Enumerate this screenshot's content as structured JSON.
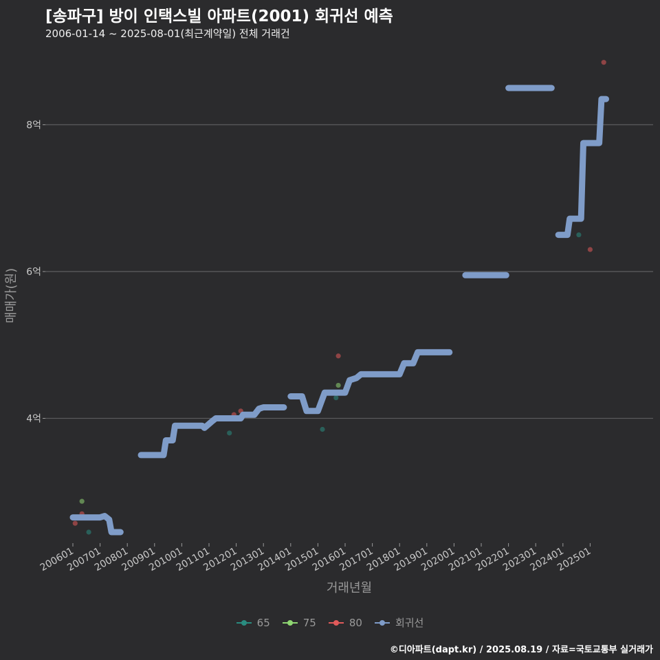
{
  "chart_data": {
    "type": "line",
    "title": "[송파구] 방이 인택스빌 아파트(2001) 회귀선 예측",
    "subtitle": "2006-01-14 ~ 2025-08-01(최근계약일) 전체 거래건",
    "xlabel": "거래년월",
    "ylabel": "매매가(원)",
    "caption": "©디아파트(dapt.kr) / 2025.08.19 / 자료=국토교통부 실거래가",
    "x_range": [
      "2006-01",
      "2025-12"
    ],
    "ylim": [
      2.3,
      8.95
    ],
    "y_ticks": [
      4,
      6,
      8
    ],
    "y_tick_labels": [
      "4억",
      "6억",
      "8억"
    ],
    "x_tick_labels": [
      "200601",
      "200701",
      "200801",
      "200901",
      "201001",
      "201101",
      "201201",
      "201301",
      "201401",
      "201501",
      "201601",
      "201701",
      "201801",
      "201901",
      "202001",
      "202101",
      "202201",
      "202301",
      "202401",
      "202501"
    ],
    "grid": "horizontal major lines",
    "legend_position": "bottom",
    "legend": [
      {
        "name": "65",
        "color": "#2a8c80"
      },
      {
        "name": "75",
        "color": "#8fd672"
      },
      {
        "name": "80",
        "color": "#e15a5a"
      },
      {
        "name": "회귀선",
        "color": "#7f9cc8"
      }
    ],
    "series": [
      {
        "name": "65",
        "color": "#2a8c80",
        "kind": "scatter",
        "points": [
          [
            "2006-08",
            2.45
          ],
          [
            "2011-10",
            3.8
          ],
          [
            "2015-03",
            3.85
          ],
          [
            "2015-09",
            4.28
          ],
          [
            "2024-08",
            6.5
          ]
        ]
      },
      {
        "name": "75",
        "color": "#8fd672",
        "kind": "scatter",
        "points": [
          [
            "2006-05",
            2.87
          ],
          [
            "2015-10",
            4.45
          ]
        ]
      },
      {
        "name": "80",
        "color": "#e15a5a",
        "kind": "scatter",
        "points": [
          [
            "2006-02",
            2.57
          ],
          [
            "2006-05",
            2.7
          ],
          [
            "2011-12",
            4.05
          ],
          [
            "2012-03",
            4.1
          ],
          [
            "2015-10",
            4.85
          ],
          [
            "2025-01",
            6.3
          ],
          [
            "2025-07",
            8.85
          ]
        ]
      },
      {
        "name": "회귀선",
        "color": "#7f9cc8",
        "kind": "line",
        "segments": [
          [
            [
              "2006-01",
              2.65
            ],
            [
              "2007-01",
              2.65
            ],
            [
              "2007-03",
              2.67
            ],
            [
              "2007-05",
              2.62
            ],
            [
              "2007-06",
              2.45
            ],
            [
              "2007-10",
              2.45
            ]
          ],
          [
            [
              "2008-07",
              3.5
            ],
            [
              "2009-05",
              3.5
            ],
            [
              "2009-06",
              3.7
            ],
            [
              "2009-09",
              3.7
            ],
            [
              "2009-10",
              3.9
            ],
            [
              "2010-10",
              3.9
            ],
            [
              "2010-11",
              3.87
            ],
            [
              "2011-02",
              3.95
            ],
            [
              "2011-04",
              4.0
            ],
            [
              "2012-03",
              4.0
            ],
            [
              "2012-04",
              4.05
            ],
            [
              "2012-09",
              4.05
            ],
            [
              "2012-11",
              4.13
            ],
            [
              "2013-01",
              4.15
            ],
            [
              "2013-10",
              4.15
            ]
          ],
          [
            [
              "2014-01",
              4.3
            ],
            [
              "2014-06",
              4.3
            ],
            [
              "2014-08",
              4.1
            ],
            [
              "2015-01",
              4.1
            ],
            [
              "2015-04",
              4.35
            ],
            [
              "2016-01",
              4.35
            ],
            [
              "2016-03",
              4.52
            ],
            [
              "2016-06",
              4.55
            ],
            [
              "2016-08",
              4.6
            ],
            [
              "2018-01",
              4.6
            ],
            [
              "2018-03",
              4.75
            ],
            [
              "2018-07",
              4.75
            ],
            [
              "2018-09",
              4.9
            ],
            [
              "2019-11",
              4.9
            ]
          ],
          [
            [
              "2020-06",
              5.95
            ],
            [
              "2021-12",
              5.95
            ]
          ],
          [
            [
              "2022-01",
              8.5
            ],
            [
              "2023-08",
              8.5
            ]
          ],
          [
            [
              "2023-11",
              6.5
            ],
            [
              "2024-03",
              6.5
            ],
            [
              "2024-04",
              6.72
            ],
            [
              "2024-09",
              6.72
            ],
            [
              "2024-10",
              7.75
            ],
            [
              "2025-05",
              7.75
            ],
            [
              "2025-06",
              8.35
            ],
            [
              "2025-08",
              8.35
            ]
          ]
        ]
      }
    ]
  }
}
